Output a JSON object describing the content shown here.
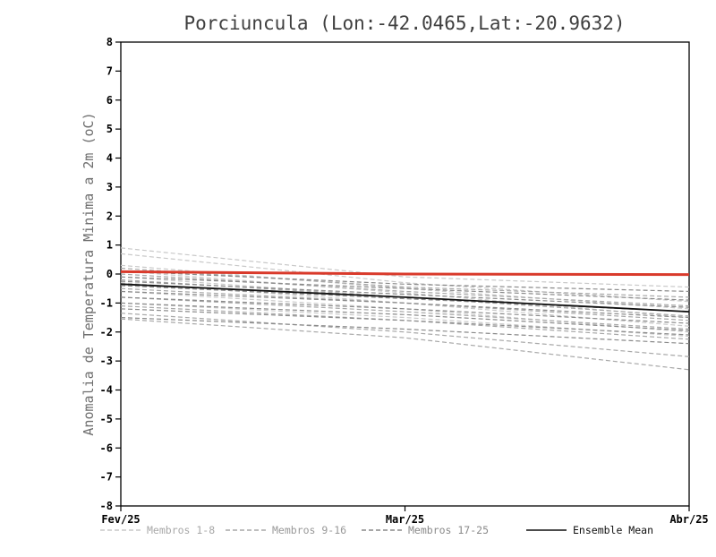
{
  "chart_data": {
    "type": "line",
    "title": "Porciuncula (Lon:-42.0465,Lat:-20.9632)",
    "ylabel": "Anomalia de Temperatura Minima a 2m (oC)",
    "xlabel": "",
    "x_ticks": [
      "Fev/25",
      "Mar/25",
      "Abr/25"
    ],
    "ylim": [
      -8,
      8
    ],
    "y_tick_step": 1,
    "grid": false,
    "groups": [
      {
        "name": "Membros 1-8",
        "color": "#c9c9c9",
        "style": "dashed"
      },
      {
        "name": "Membros 9-16",
        "color": "#a8a8a8",
        "style": "dashed"
      },
      {
        "name": "Membros 17-25",
        "color": "#8a8a8a",
        "style": "dashed"
      }
    ],
    "members": [
      {
        "name": "m01",
        "group": 0,
        "values": [
          0.9,
          -0.1,
          -0.45
        ]
      },
      {
        "name": "m02",
        "group": 0,
        "values": [
          0.7,
          -0.3,
          -0.95
        ]
      },
      {
        "name": "m03",
        "group": 0,
        "values": [
          0.3,
          -0.5,
          -1.2
        ]
      },
      {
        "name": "m04",
        "group": 0,
        "values": [
          0.1,
          -0.65,
          -1.5
        ]
      },
      {
        "name": "m05",
        "group": 0,
        "values": [
          -0.1,
          -0.8,
          -1.3
        ]
      },
      {
        "name": "m06",
        "group": 0,
        "values": [
          -0.3,
          -1.0,
          -1.8
        ]
      },
      {
        "name": "m07",
        "group": 0,
        "values": [
          -0.6,
          -1.2,
          -2.0
        ]
      },
      {
        "name": "m08",
        "group": 0,
        "values": [
          -1.0,
          -1.5,
          -2.15
        ]
      },
      {
        "name": "m09",
        "group": 1,
        "values": [
          0.2,
          -0.45,
          -0.8
        ]
      },
      {
        "name": "m10",
        "group": 1,
        "values": [
          0.0,
          -0.6,
          -1.1
        ]
      },
      {
        "name": "m11",
        "group": 1,
        "values": [
          -0.2,
          -0.8,
          -1.45
        ]
      },
      {
        "name": "m12",
        "group": 1,
        "values": [
          -0.5,
          -1.0,
          -1.6
        ]
      },
      {
        "name": "m13",
        "group": 1,
        "values": [
          -0.8,
          -1.3,
          -1.9
        ]
      },
      {
        "name": "m14",
        "group": 1,
        "values": [
          -1.1,
          -1.6,
          -2.25
        ]
      },
      {
        "name": "m15",
        "group": 1,
        "values": [
          -1.35,
          -2.0,
          -2.85
        ]
      },
      {
        "name": "m16",
        "group": 1,
        "values": [
          -1.55,
          -2.2,
          -3.3
        ]
      },
      {
        "name": "m17",
        "group": 2,
        "values": [
          0.1,
          -0.35,
          -0.6
        ]
      },
      {
        "name": "m18",
        "group": 2,
        "values": [
          -0.1,
          -0.5,
          -0.9
        ]
      },
      {
        "name": "m19",
        "group": 2,
        "values": [
          -0.25,
          -0.7,
          -1.15
        ]
      },
      {
        "name": "m20",
        "group": 2,
        "values": [
          -0.4,
          -0.85,
          -1.3
        ]
      },
      {
        "name": "m21",
        "group": 2,
        "values": [
          -0.6,
          -1.0,
          -1.5
        ]
      },
      {
        "name": "m22",
        "group": 2,
        "values": [
          -0.8,
          -1.2,
          -1.7
        ]
      },
      {
        "name": "m23",
        "group": 2,
        "values": [
          -1.0,
          -1.4,
          -1.95
        ]
      },
      {
        "name": "m24",
        "group": 2,
        "values": [
          -1.2,
          -1.6,
          -2.1
        ]
      },
      {
        "name": "m25",
        "group": 2,
        "values": [
          -1.5,
          -1.9,
          -2.4
        ]
      }
    ],
    "ensemble_mean": {
      "name": "Ensemble Mean",
      "color": "#111111",
      "values": [
        -0.35,
        -0.8,
        -1.3
      ]
    },
    "reference_line": {
      "name": "zero-anomaly-line",
      "color": "#d93a2b",
      "values": [
        0.08,
        0.0,
        -0.02
      ]
    }
  },
  "legend": {
    "items": [
      {
        "label": "Membros 1-8",
        "color": "#c9c9c9",
        "text_color": "#a8a8a8",
        "dashed": true
      },
      {
        "label": "Membros 9-16",
        "color": "#a8a8a8",
        "text_color": "#989898",
        "dashed": true
      },
      {
        "label": "Membros 17-25",
        "color": "#8a8a8a",
        "text_color": "#8a8a8a",
        "dashed": true
      },
      {
        "label": "Ensemble Mean",
        "color": "#111111",
        "text_color": "#111111",
        "dashed": false
      }
    ]
  }
}
